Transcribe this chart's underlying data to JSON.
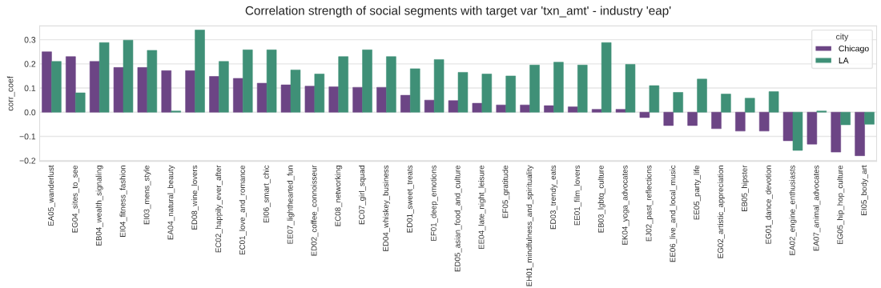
{
  "chart_data": {
    "type": "bar",
    "title": "Correlation strength of social segments with target var 'txn_amt' - industry 'eap'",
    "ylabel": "corr_coef",
    "legend_title": "city",
    "legend": "top right",
    "grid": "y",
    "categories": [
      "EA05_wanderlust",
      "EG04_sites_to_see",
      "EB04_wealth_signaling",
      "EI04_fitness_fashion",
      "EI03_mens_style",
      "EA04_natural_beauty",
      "ED08_wine_lovers",
      "EC02_happily_ever_after",
      "EC01_love_and_romance",
      "EI06_smart_chic",
      "EE07_lighthearted_fun",
      "ED02_coffee_connoisseur",
      "EC08_networking",
      "EC07_girl_squad",
      "ED04_whiskey_business",
      "ED01_sweet_treats",
      "EF01_deep_emotions",
      "ED05_asian_food_and_culture",
      "EE04_late_night_leisure",
      "EF05_gratitude",
      "EH01_mindfulness_and_spirituality",
      "ED03_trendy_eats",
      "EE01_film_lovers",
      "EB03_lgbtq_culture",
      "EK04_yoga_advocates",
      "EJ02_past_reflections",
      "EE06_live_and_local_music",
      "EE05_party_life",
      "EG02_artistic_appreciation",
      "EB05_hipster",
      "EG01_dance_devotion",
      "EA02_engine_enthusiasts",
      "EA07_animal_advocates",
      "EG05_hip_hop_culture",
      "EI05_body_art"
    ],
    "series": [
      {
        "name": "Chicago",
        "color": "#6c4585",
        "values": [
          0.25,
          0.23,
          0.21,
          0.185,
          0.185,
          0.172,
          0.172,
          0.148,
          0.14,
          0.12,
          0.113,
          0.108,
          0.105,
          0.103,
          0.103,
          0.07,
          0.05,
          0.048,
          0.037,
          0.03,
          0.03,
          0.027,
          0.022,
          0.012,
          0.012,
          -0.022,
          -0.055,
          -0.055,
          -0.068,
          -0.078,
          -0.078,
          -0.118,
          -0.132,
          -0.165,
          -0.18
        ]
      },
      {
        "name": "LA",
        "color": "#3f9077",
        "values": [
          0.21,
          0.08,
          0.288,
          0.298,
          0.256,
          0.005,
          0.34,
          0.21,
          0.258,
          0.258,
          0.175,
          0.158,
          0.23,
          0.258,
          0.23,
          0.18,
          0.218,
          0.165,
          0.158,
          0.15,
          0.195,
          0.207,
          0.195,
          0.288,
          0.198,
          0.11,
          0.082,
          0.137,
          0.075,
          0.058,
          0.085,
          -0.158,
          0.005,
          -0.052,
          -0.05
        ]
      }
    ],
    "ylim": [
      -0.203,
      0.357
    ],
    "yticks": [
      {
        "value": -0.2,
        "label": "−0.2"
      },
      {
        "value": -0.1,
        "label": "−0.1"
      },
      {
        "value": 0.0,
        "label": "0.0"
      },
      {
        "value": 0.1,
        "label": "0.1"
      },
      {
        "value": 0.2,
        "label": "0.2"
      },
      {
        "value": 0.3,
        "label": "0.3"
      }
    ]
  }
}
